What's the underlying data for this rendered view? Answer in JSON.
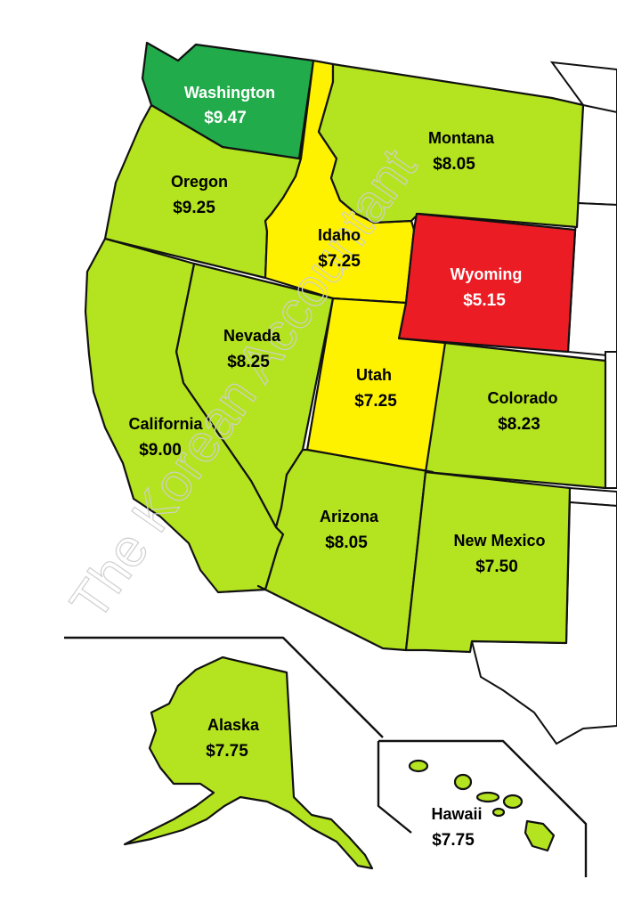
{
  "colors": {
    "high": "#21ab4a",
    "mid": "#b4e31f",
    "low": "#fff200",
    "lowest": "#ec1c24",
    "background": "#ffffff",
    "border": "#111111"
  },
  "watermark": "The Korean Accountant",
  "states": [
    {
      "id": "washington",
      "name": "Washington",
      "value": "$9.47",
      "color": "#21ab4a",
      "text_color": "#ffffff"
    },
    {
      "id": "oregon",
      "name": "Oregon",
      "value": "$9.25",
      "color": "#b4e31f",
      "text_color": "#000000"
    },
    {
      "id": "idaho",
      "name": "Idaho",
      "value": "$7.25",
      "color": "#fff200",
      "text_color": "#000000"
    },
    {
      "id": "montana",
      "name": "Montana",
      "value": "$8.05",
      "color": "#b4e31f",
      "text_color": "#000000"
    },
    {
      "id": "wyoming",
      "name": "Wyoming",
      "value": "$5.15",
      "color": "#ec1c24",
      "text_color": "#ffffff"
    },
    {
      "id": "nevada",
      "name": "Nevada",
      "value": "$8.25",
      "color": "#b4e31f",
      "text_color": "#000000"
    },
    {
      "id": "utah",
      "name": "Utah",
      "value": "$7.25",
      "color": "#fff200",
      "text_color": "#000000"
    },
    {
      "id": "colorado",
      "name": "Colorado",
      "value": "$8.23",
      "color": "#b4e31f",
      "text_color": "#000000"
    },
    {
      "id": "california",
      "name": "California",
      "value": "$9.00",
      "color": "#b4e31f",
      "text_color": "#000000"
    },
    {
      "id": "arizona",
      "name": "Arizona",
      "value": "$8.05",
      "color": "#b4e31f",
      "text_color": "#000000"
    },
    {
      "id": "new-mexico",
      "name": "New Mexico",
      "value": "$7.50",
      "color": "#b4e31f",
      "text_color": "#000000"
    },
    {
      "id": "alaska",
      "name": "Alaska",
      "value": "$7.75",
      "color": "#b4e31f",
      "text_color": "#000000"
    },
    {
      "id": "hawaii",
      "name": "Hawaii",
      "value": "$7.75",
      "color": "#b4e31f",
      "text_color": "#000000"
    }
  ]
}
